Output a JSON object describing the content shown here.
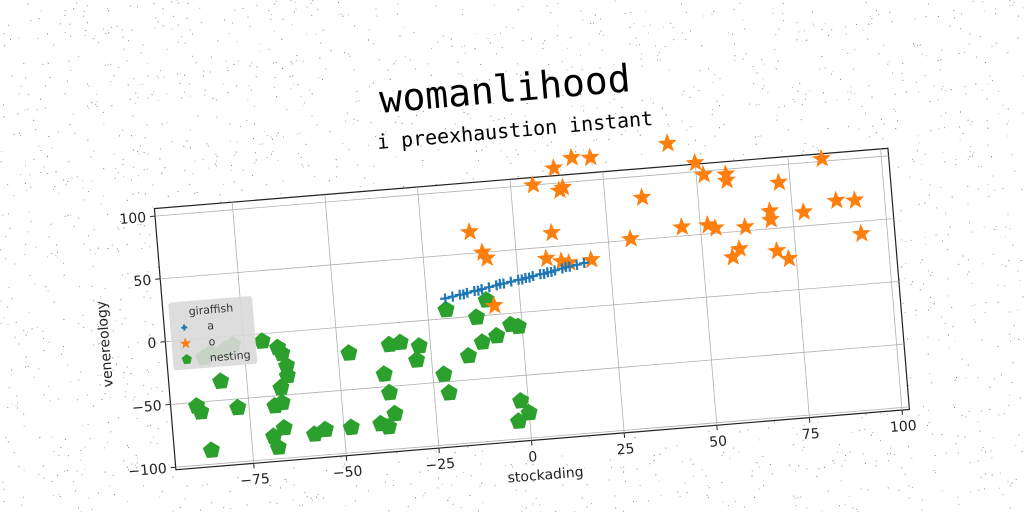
{
  "chart_data": {
    "type": "scatter",
    "title": "womanlihood",
    "subtitle": "i preexhaustion instant",
    "xlabel": "stockading",
    "ylabel": "venereology",
    "xlim": [
      -96,
      102
    ],
    "ylim": [
      -102,
      106
    ],
    "xticks": [
      -75,
      -50,
      -25,
      0,
      25,
      50,
      75,
      100
    ],
    "yticks": [
      -100,
      -50,
      0,
      50,
      100
    ],
    "xtick_labels": [
      "−75",
      "−50",
      "−25",
      "0",
      "25",
      "50",
      "75",
      "100"
    ],
    "ytick_labels": [
      "−100",
      "−50",
      "0",
      "50",
      "100"
    ],
    "grid": true,
    "legend": {
      "title": "giraffish",
      "placement": "center-left"
    },
    "series": [
      {
        "name": "a",
        "marker": "plus",
        "color": "#1f77b4",
        "points": [
          [
            -20,
            16
          ],
          [
            -18,
            17
          ],
          [
            -16,
            18
          ],
          [
            -14,
            19
          ],
          [
            -12,
            20
          ],
          [
            -10,
            21
          ],
          [
            -8,
            22
          ],
          [
            -6,
            23
          ],
          [
            -4,
            24
          ],
          [
            -2,
            25
          ],
          [
            0,
            26
          ],
          [
            2,
            27
          ],
          [
            4,
            28
          ],
          [
            6,
            29
          ],
          [
            8,
            30
          ],
          [
            10,
            31
          ],
          [
            12,
            32
          ],
          [
            14,
            33
          ],
          [
            16,
            34
          ],
          [
            18,
            35
          ],
          [
            -15,
            18
          ],
          [
            -5,
            24
          ],
          [
            3,
            27
          ],
          [
            9,
            30
          ],
          [
            13,
            33
          ],
          [
            -11,
            20
          ],
          [
            1,
            26
          ],
          [
            7,
            29
          ]
        ]
      },
      {
        "name": "o",
        "marker": "star",
        "color": "#ff7f0e",
        "points": [
          [
            6,
            100
          ],
          [
            12,
            112
          ],
          [
            13,
            94
          ],
          [
            14,
            96
          ],
          [
            17,
            119
          ],
          [
            22,
            118
          ],
          [
            43,
            124
          ],
          [
            50,
            107
          ],
          [
            52,
            97
          ],
          [
            58,
            96
          ],
          [
            58,
            91
          ],
          [
            84,
            102
          ],
          [
            35,
            83
          ],
          [
            72,
            86
          ],
          [
            -12,
            67
          ],
          [
            -9,
            50
          ],
          [
            -8,
            45
          ],
          [
            10,
            61
          ],
          [
            31,
            51
          ],
          [
            45,
            57
          ],
          [
            52,
            57
          ],
          [
            54,
            54
          ],
          [
            62,
            53
          ],
          [
            69,
            64
          ],
          [
            69,
            57
          ],
          [
            78,
            61
          ],
          [
            87,
            68
          ],
          [
            92,
            67
          ],
          [
            93,
            40
          ],
          [
            60,
            36
          ],
          [
            58,
            30
          ],
          [
            70,
            32
          ],
          [
            73,
            25
          ],
          [
            8,
            41
          ],
          [
            12,
            38
          ],
          [
            14,
            36
          ],
          [
            20,
            37
          ],
          [
            -7,
            7
          ]
        ]
      },
      {
        "name": "nesting",
        "marker": "pentagon",
        "color": "#2ca02c",
        "points": [
          [
            -86,
            -15
          ],
          [
            -84,
            -12
          ],
          [
            -78,
            -7
          ],
          [
            -80,
            -10
          ],
          [
            -70,
            -6
          ],
          [
            -66,
            -12
          ],
          [
            -65,
            -17
          ],
          [
            -64,
            -27
          ],
          [
            -64,
            -35
          ],
          [
            -66,
            -44
          ],
          [
            -66,
            -56
          ],
          [
            -68,
            -58
          ],
          [
            -78,
            -57
          ],
          [
            -82,
            -35
          ],
          [
            -89,
            -53
          ],
          [
            -88,
            -58
          ],
          [
            -66,
            -76
          ],
          [
            -69,
            -82
          ],
          [
            -68,
            -91
          ],
          [
            -86,
            -89
          ],
          [
            -58,
            -83
          ],
          [
            -55,
            -80
          ],
          [
            -48,
            -80
          ],
          [
            -40,
            -79
          ],
          [
            -38,
            -82
          ],
          [
            -36,
            -72
          ],
          [
            -37,
            -55
          ],
          [
            -38,
            -40
          ],
          [
            -36,
            -17
          ],
          [
            -47,
            -21
          ],
          [
            -33,
            -16
          ],
          [
            -28,
            -20
          ],
          [
            -29,
            -31
          ],
          [
            -22,
            -44
          ],
          [
            -21,
            -59
          ],
          [
            -15,
            -31
          ],
          [
            -11,
            -21
          ],
          [
            -7,
            -17
          ],
          [
            -3,
            -9
          ],
          [
            -1,
            -11
          ],
          [
            -12,
            -1
          ],
          [
            -2,
            -70
          ],
          [
            0,
            -80
          ],
          [
            -3,
            -86
          ],
          [
            -20,
            7
          ],
          [
            -9,
            12
          ]
        ]
      }
    ]
  }
}
